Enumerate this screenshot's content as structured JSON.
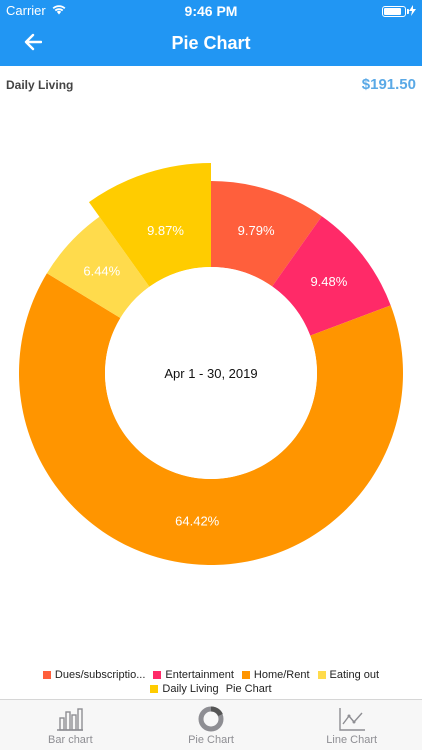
{
  "status": {
    "carrier": "Carrier",
    "time": "9:46 PM",
    "battery_level": 0.9
  },
  "nav": {
    "title": "Pie Chart"
  },
  "header": {
    "label": "Daily Living",
    "amount": "$191.50"
  },
  "chart_data": {
    "type": "pie",
    "center_label": "Apr 1 - 30, 2019",
    "slices": [
      {
        "name": "Dues/subscriptio...",
        "percent": 9.79,
        "label": "9.79%",
        "color": "#ff5f3c"
      },
      {
        "name": "Entertainment",
        "percent": 9.48,
        "label": "9.48%",
        "color": "#ff2a68"
      },
      {
        "name": "Home/Rent",
        "percent": 64.42,
        "label": "64.42%",
        "color": "#ff9500"
      },
      {
        "name": "Eating out",
        "percent": 6.44,
        "label": "6.44%",
        "color": "#ffdb4c"
      },
      {
        "name": "Daily Living",
        "percent": 9.87,
        "label": "9.87%",
        "color": "#ffcc00",
        "highlighted": true
      }
    ]
  },
  "legend": {
    "items": [
      {
        "label": "Dues/subscriptio...",
        "color": "#ff5f3c"
      },
      {
        "label": "Entertainment",
        "color": "#ff2a68"
      },
      {
        "label": "Home/Rent",
        "color": "#ff9500"
      },
      {
        "label": "Eating out",
        "color": "#ffdb4c"
      },
      {
        "label": "Daily Living",
        "color": "#ffcc00"
      }
    ],
    "description": "Pie Chart"
  },
  "tabs": [
    {
      "label": "Bar chart",
      "icon": "bar-chart-icon"
    },
    {
      "label": "Pie Chart",
      "icon": "pie-chart-icon"
    },
    {
      "label": "Line Chart",
      "icon": "line-chart-icon"
    }
  ]
}
